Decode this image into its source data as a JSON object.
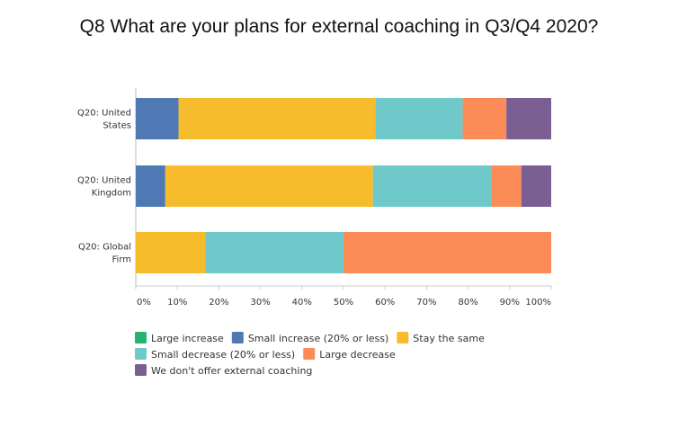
{
  "chart_data": {
    "type": "bar",
    "orientation": "horizontal",
    "stacked": true,
    "title": "Q8 What are your plans for external coaching in Q3/Q4 2020?",
    "categories": [
      [
        "Q20: United",
        "States"
      ],
      [
        "Q20: United",
        "Kingdom"
      ],
      [
        "Q20: Global",
        "Firm"
      ]
    ],
    "series": [
      {
        "name": "Large increase",
        "color": "#25b46f",
        "values": [
          0,
          0,
          0
        ]
      },
      {
        "name": "Small increase (20% or less)",
        "color": "#4e79b4",
        "values": [
          10.3,
          7.1,
          0
        ]
      },
      {
        "name": "Stay the same",
        "color": "#f6bc2c",
        "values": [
          47.4,
          50.0,
          16.7
        ]
      },
      {
        "name": "Small decrease (20% or less)",
        "color": "#6fc8c9",
        "values": [
          21.0,
          28.6,
          33.3
        ]
      },
      {
        "name": "Large decrease",
        "color": "#fc8c57",
        "values": [
          10.5,
          7.1,
          50.0
        ]
      },
      {
        "name": "We don't offer external coaching",
        "color": "#7b5e92",
        "values": [
          10.8,
          7.2,
          0
        ]
      }
    ],
    "xlim": [
      0,
      100
    ],
    "xticks": [
      "0%",
      "10%",
      "20%",
      "30%",
      "40%",
      "50%",
      "60%",
      "70%",
      "80%",
      "90%",
      "100%"
    ],
    "grid": false,
    "legend_position": "bottom-left"
  }
}
